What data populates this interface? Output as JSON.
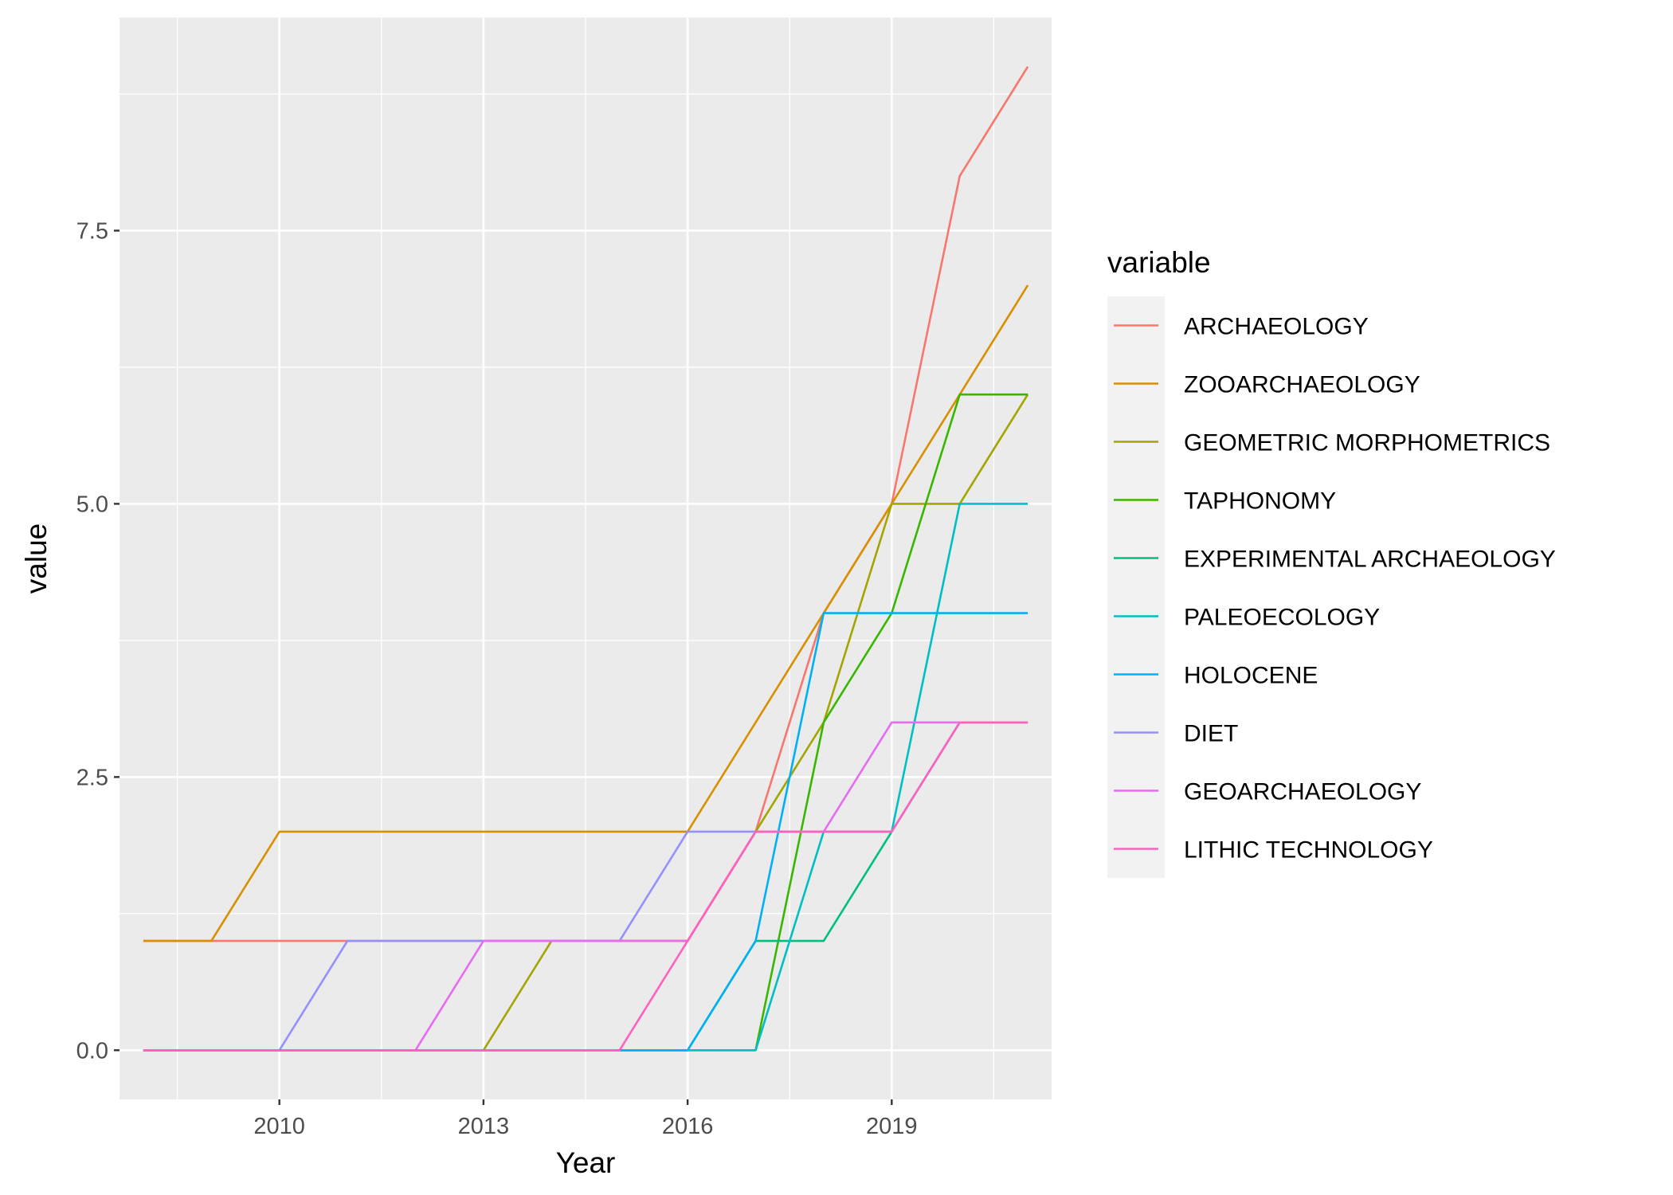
{
  "chart_data": {
    "type": "line",
    "xlabel": "Year",
    "ylabel": "value",
    "xlim": [
      2007.65,
      2021.35
    ],
    "ylim": [
      -0.45,
      9.45
    ],
    "x_ticks": [
      2010,
      2013,
      2016,
      2019
    ],
    "x_tick_labels": [
      "2010",
      "2013",
      "2016",
      "2019"
    ],
    "y_ticks": [
      0,
      2.5,
      5,
      7.5
    ],
    "y_tick_labels": [
      "0.0",
      "2.5",
      "5.0",
      "7.5"
    ],
    "grid": true,
    "legend": {
      "title": "variable",
      "position": "right"
    },
    "series": [
      {
        "name": "ARCHAEOLOGY",
        "color": "#F8766D",
        "points": [
          [
            2008,
            1
          ],
          [
            2009,
            1
          ],
          [
            2010,
            1
          ],
          [
            2011,
            1
          ],
          [
            2012,
            1
          ],
          [
            2013,
            1
          ],
          [
            2014,
            1
          ],
          [
            2015,
            1
          ],
          [
            2016,
            1
          ],
          [
            2017,
            2
          ],
          [
            2018,
            4
          ],
          [
            2019,
            5
          ],
          [
            2020,
            8
          ],
          [
            2021,
            9
          ]
        ]
      },
      {
        "name": "ZOOARCHAEOLOGY",
        "color": "#D89000",
        "points": [
          [
            2008,
            1
          ],
          [
            2009,
            1
          ],
          [
            2010,
            2
          ],
          [
            2011,
            2
          ],
          [
            2012,
            2
          ],
          [
            2013,
            2
          ],
          [
            2014,
            2
          ],
          [
            2015,
            2
          ],
          [
            2016,
            2
          ],
          [
            2017,
            3
          ],
          [
            2018,
            4
          ],
          [
            2019,
            5
          ],
          [
            2020,
            6
          ],
          [
            2021,
            7
          ]
        ]
      },
      {
        "name": "GEOMETRIC MORPHOMETRICS",
        "color": "#A3A500",
        "points": [
          [
            2008,
            0
          ],
          [
            2009,
            0
          ],
          [
            2010,
            0
          ],
          [
            2011,
            0
          ],
          [
            2012,
            0
          ],
          [
            2013,
            0
          ],
          [
            2014,
            1
          ],
          [
            2015,
            1
          ],
          [
            2016,
            1
          ],
          [
            2017,
            2
          ],
          [
            2018,
            3
          ],
          [
            2019,
            5
          ],
          [
            2020,
            5
          ],
          [
            2021,
            6
          ]
        ]
      },
      {
        "name": "TAPHONOMY",
        "color": "#39B600",
        "points": [
          [
            2008,
            0
          ],
          [
            2009,
            0
          ],
          [
            2010,
            0
          ],
          [
            2011,
            0
          ],
          [
            2012,
            0
          ],
          [
            2013,
            0
          ],
          [
            2014,
            0
          ],
          [
            2015,
            0
          ],
          [
            2016,
            0
          ],
          [
            2017,
            0
          ],
          [
            2018,
            3
          ],
          [
            2019,
            4
          ],
          [
            2020,
            6
          ],
          [
            2021,
            6
          ]
        ]
      },
      {
        "name": "EXPERIMENTAL ARCHAEOLOGY",
        "color": "#00BF7D",
        "points": [
          [
            2008,
            0
          ],
          [
            2009,
            0
          ],
          [
            2010,
            0
          ],
          [
            2011,
            0
          ],
          [
            2012,
            0
          ],
          [
            2013,
            0
          ],
          [
            2014,
            0
          ],
          [
            2015,
            0
          ],
          [
            2016,
            0
          ],
          [
            2017,
            1
          ],
          [
            2018,
            1
          ],
          [
            2019,
            2
          ],
          [
            2020,
            3
          ],
          [
            2021,
            3
          ]
        ]
      },
      {
        "name": "PALEOECOLOGY",
        "color": "#00BFC4",
        "points": [
          [
            2008,
            0
          ],
          [
            2009,
            0
          ],
          [
            2010,
            0
          ],
          [
            2011,
            0
          ],
          [
            2012,
            0
          ],
          [
            2013,
            0
          ],
          [
            2014,
            0
          ],
          [
            2015,
            0
          ],
          [
            2016,
            0
          ],
          [
            2017,
            0
          ],
          [
            2018,
            2
          ],
          [
            2019,
            2
          ],
          [
            2020,
            5
          ],
          [
            2021,
            5
          ]
        ]
      },
      {
        "name": "HOLOCENE",
        "color": "#00B0F6",
        "points": [
          [
            2008,
            0
          ],
          [
            2009,
            0
          ],
          [
            2010,
            0
          ],
          [
            2011,
            0
          ],
          [
            2012,
            0
          ],
          [
            2013,
            0
          ],
          [
            2014,
            0
          ],
          [
            2015,
            0
          ],
          [
            2016,
            0
          ],
          [
            2017,
            1
          ],
          [
            2018,
            4
          ],
          [
            2019,
            4
          ],
          [
            2020,
            4
          ],
          [
            2021,
            4
          ]
        ]
      },
      {
        "name": "DIET",
        "color": "#9590FF",
        "points": [
          [
            2008,
            0
          ],
          [
            2009,
            0
          ],
          [
            2010,
            0
          ],
          [
            2011,
            1
          ],
          [
            2012,
            1
          ],
          [
            2013,
            1
          ],
          [
            2014,
            1
          ],
          [
            2015,
            1
          ],
          [
            2016,
            2
          ],
          [
            2017,
            2
          ],
          [
            2018,
            2
          ],
          [
            2019,
            2
          ],
          [
            2020,
            3
          ],
          [
            2021,
            3
          ]
        ]
      },
      {
        "name": "GEOARCHAEOLOGY",
        "color": "#E76BF3",
        "points": [
          [
            2008,
            0
          ],
          [
            2009,
            0
          ],
          [
            2010,
            0
          ],
          [
            2011,
            0
          ],
          [
            2012,
            0
          ],
          [
            2013,
            1
          ],
          [
            2014,
            1
          ],
          [
            2015,
            1
          ],
          [
            2016,
            1
          ],
          [
            2017,
            2
          ],
          [
            2018,
            2
          ],
          [
            2019,
            3
          ],
          [
            2020,
            3
          ],
          [
            2021,
            3
          ]
        ]
      },
      {
        "name": "LITHIC TECHNOLOGY",
        "color": "#FF62BC",
        "points": [
          [
            2008,
            0
          ],
          [
            2009,
            0
          ],
          [
            2010,
            0
          ],
          [
            2011,
            0
          ],
          [
            2012,
            0
          ],
          [
            2013,
            0
          ],
          [
            2014,
            0
          ],
          [
            2015,
            0
          ],
          [
            2016,
            1
          ],
          [
            2017,
            2
          ],
          [
            2018,
            2
          ],
          [
            2019,
            2
          ],
          [
            2020,
            3
          ],
          [
            2021,
            3
          ]
        ]
      }
    ],
    "colors": {
      "panel_background": "#EBEBEB",
      "grid_major": "#FFFFFF",
      "legend_key_background": "#F2F2F2"
    }
  }
}
